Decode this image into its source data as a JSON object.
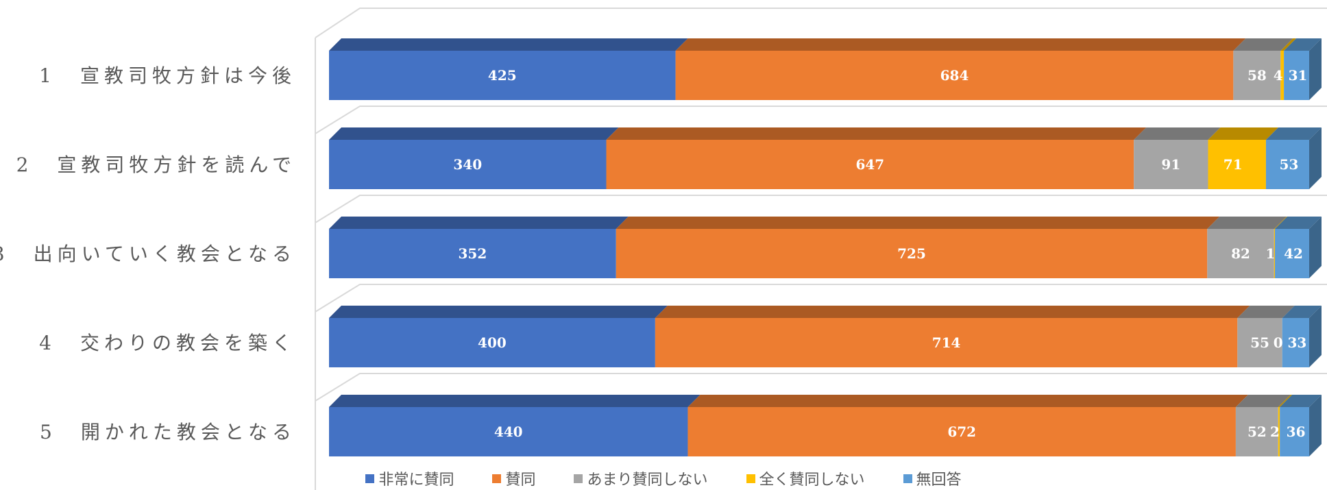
{
  "chart_data": {
    "type": "bar",
    "orientation": "horizontal",
    "stacked": true,
    "style_3d": true,
    "categories": [
      "1　宣教司牧方針は今後",
      "2　宣教司牧方針を読んで",
      "3　出向いていく教会となる",
      "4　交わりの教会を築く",
      "5　開かれた教会となる"
    ],
    "series": [
      {
        "name": "非常に賛同",
        "color": "#4472C4",
        "values": [
          425,
          340,
          352,
          400,
          440
        ]
      },
      {
        "name": "賛同",
        "color": "#ED7D31",
        "values": [
          684,
          647,
          725,
          714,
          672
        ]
      },
      {
        "name": "あまり賛同しない",
        "color": "#A5A5A5",
        "values": [
          58,
          91,
          82,
          55,
          52
        ]
      },
      {
        "name": "全く賛同しない",
        "color": "#FFC000",
        "values": [
          4,
          71,
          1,
          0,
          2
        ]
      },
      {
        "name": "無回答",
        "color": "#5B9BD5",
        "values": [
          31,
          53,
          42,
          33,
          36
        ]
      }
    ],
    "data_labels": true,
    "legend_position": "bottom"
  }
}
